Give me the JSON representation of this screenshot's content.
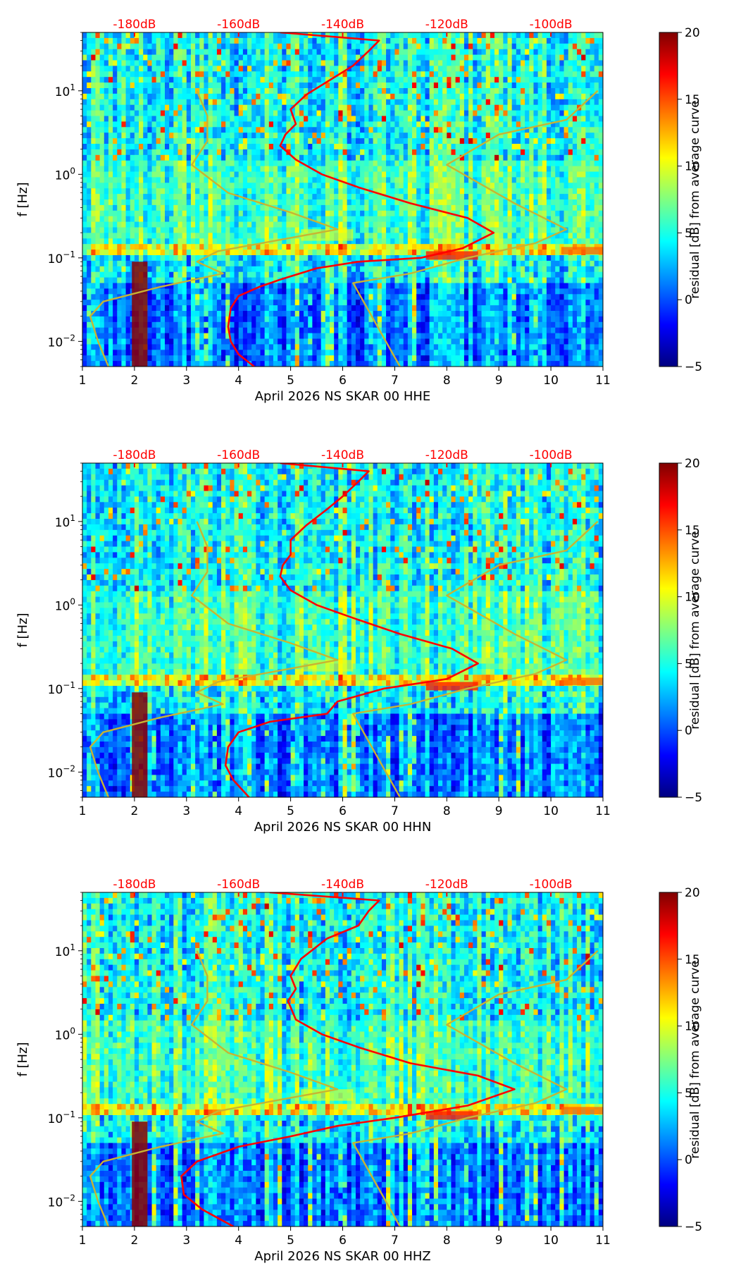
{
  "chart_data": [
    {
      "type": "heatmap",
      "title": "",
      "xlabel": "April 2026 NS SKAR 00 HHE",
      "ylabel": "f [Hz]",
      "xlim": [
        1,
        11
      ],
      "ylim": [
        0.005,
        50
      ],
      "yscale": "log",
      "x_ticks": [
        1,
        2,
        3,
        4,
        5,
        6,
        7,
        8,
        9,
        10,
        11
      ],
      "top_axis_labels": [
        "-180dB",
        "-160dB",
        "-140dB",
        "-120dB",
        "-100dB"
      ],
      "colorbar": {
        "label": "residual [dB] from average curve",
        "range": [
          -5,
          20
        ],
        "ticks": [
          -5,
          0,
          5,
          10,
          15,
          20
        ],
        "colormap": "jet"
      },
      "series": [
        {
          "color": "#ff0000",
          "points": [
            [
              4.3,
              0.005
            ],
            [
              4.0,
              0.007
            ],
            [
              3.85,
              0.01
            ],
            [
              3.8,
              0.015
            ],
            [
              3.85,
              0.025
            ],
            [
              4.0,
              0.035
            ],
            [
              4.4,
              0.045
            ],
            [
              4.8,
              0.055
            ],
            [
              5.5,
              0.075
            ],
            [
              6.3,
              0.09
            ],
            [
              7.5,
              0.1
            ],
            [
              8.3,
              0.13
            ],
            [
              8.9,
              0.2
            ],
            [
              8.4,
              0.3
            ],
            [
              7.3,
              0.45
            ],
            [
              6.3,
              0.7
            ],
            [
              5.6,
              1.0
            ],
            [
              5.1,
              1.5
            ],
            [
              4.8,
              2.2
            ],
            [
              4.9,
              3
            ],
            [
              5.1,
              4
            ],
            [
              5.0,
              6
            ],
            [
              5.3,
              9
            ],
            [
              5.8,
              14
            ],
            [
              6.2,
              20
            ],
            [
              6.5,
              30
            ],
            [
              6.7,
              40
            ],
            [
              4.8,
              50
            ]
          ]
        },
        {
          "color": "#c8b432",
          "points": [
            [
              1.5,
              0.005
            ],
            [
              1.3,
              0.01
            ],
            [
              1.15,
              0.02
            ],
            [
              1.4,
              0.03
            ],
            [
              2.5,
              0.045
            ],
            [
              3.7,
              0.065
            ],
            [
              3.2,
              0.09
            ],
            [
              3.6,
              0.12
            ],
            [
              5.9,
              0.22
            ],
            [
              5.0,
              0.35
            ],
            [
              3.8,
              0.6
            ],
            [
              3.1,
              1.3
            ],
            [
              3.4,
              2.5
            ],
            [
              3.4,
              5
            ],
            [
              3.2,
              10
            ]
          ]
        },
        {
          "color": "#c8b432",
          "points": [
            [
              7.1,
              0.005
            ],
            [
              6.2,
              0.05
            ],
            [
              7.3,
              0.065
            ],
            [
              8.4,
              0.1
            ],
            [
              9.7,
              0.15
            ],
            [
              10.3,
              0.22
            ],
            [
              9.3,
              0.45
            ],
            [
              8.0,
              1.3
            ],
            [
              9.0,
              3
            ],
            [
              10.3,
              4.5
            ],
            [
              10.9,
              10
            ]
          ]
        }
      ]
    },
    {
      "type": "heatmap",
      "title": "",
      "xlabel": "April 2026 NS SKAR 00 HHN",
      "ylabel": "f [Hz]",
      "xlim": [
        1,
        11
      ],
      "ylim": [
        0.005,
        50
      ],
      "yscale": "log",
      "x_ticks": [
        1,
        2,
        3,
        4,
        5,
        6,
        7,
        8,
        9,
        10,
        11
      ],
      "top_axis_labels": [
        "-180dB",
        "-160dB",
        "-140dB",
        "-120dB",
        "-100dB"
      ],
      "colorbar": {
        "label": "residual [dB] from average curve",
        "range": [
          -5,
          20
        ],
        "ticks": [
          -5,
          0,
          5,
          10,
          15,
          20
        ],
        "colormap": "jet"
      },
      "series": [
        {
          "color": "#ff0000",
          "points": [
            [
              4.2,
              0.005
            ],
            [
              3.9,
              0.008
            ],
            [
              3.75,
              0.012
            ],
            [
              3.8,
              0.02
            ],
            [
              4.0,
              0.03
            ],
            [
              4.6,
              0.04
            ],
            [
              5.7,
              0.05
            ],
            [
              5.9,
              0.07
            ],
            [
              6.8,
              0.1
            ],
            [
              8.0,
              0.13
            ],
            [
              8.6,
              0.2
            ],
            [
              8.1,
              0.3
            ],
            [
              7.1,
              0.45
            ],
            [
              6.2,
              0.7
            ],
            [
              5.5,
              1.0
            ],
            [
              5.0,
              1.5
            ],
            [
              4.8,
              2.2
            ],
            [
              4.85,
              3
            ],
            [
              5.0,
              4
            ],
            [
              5.0,
              6
            ],
            [
              5.3,
              9
            ],
            [
              5.7,
              14
            ],
            [
              6.0,
              20
            ],
            [
              6.3,
              30
            ],
            [
              6.5,
              40
            ],
            [
              4.8,
              50
            ]
          ]
        },
        {
          "color": "#c8b432",
          "points": [
            [
              1.5,
              0.005
            ],
            [
              1.3,
              0.01
            ],
            [
              1.15,
              0.02
            ],
            [
              1.4,
              0.03
            ],
            [
              2.5,
              0.045
            ],
            [
              3.7,
              0.065
            ],
            [
              3.2,
              0.09
            ],
            [
              3.6,
              0.12
            ],
            [
              5.9,
              0.22
            ],
            [
              5.0,
              0.35
            ],
            [
              3.8,
              0.6
            ],
            [
              3.1,
              1.3
            ],
            [
              3.4,
              2.5
            ],
            [
              3.4,
              5
            ],
            [
              3.2,
              10
            ]
          ]
        },
        {
          "color": "#c8b432",
          "points": [
            [
              7.1,
              0.005
            ],
            [
              6.2,
              0.05
            ],
            [
              7.3,
              0.065
            ],
            [
              8.4,
              0.1
            ],
            [
              9.7,
              0.15
            ],
            [
              10.3,
              0.22
            ],
            [
              9.3,
              0.45
            ],
            [
              8.0,
              1.3
            ],
            [
              9.0,
              3
            ],
            [
              10.3,
              4.5
            ],
            [
              10.9,
              10
            ]
          ]
        }
      ]
    },
    {
      "type": "heatmap",
      "title": "",
      "xlabel": "April 2026 NS SKAR 00 HHZ",
      "ylabel": "f [Hz]",
      "xlim": [
        1,
        11
      ],
      "ylim": [
        0.005,
        50
      ],
      "yscale": "log",
      "x_ticks": [
        1,
        2,
        3,
        4,
        5,
        6,
        7,
        8,
        9,
        10,
        11
      ],
      "top_axis_labels": [
        "-180dB",
        "-160dB",
        "-140dB",
        "-120dB",
        "-100dB"
      ],
      "colorbar": {
        "label": "residual [dB] from average curve",
        "range": [
          -5,
          20
        ],
        "ticks": [
          -5,
          0,
          5,
          10,
          15,
          20
        ],
        "colormap": "jet"
      },
      "series": [
        {
          "color": "#ff0000",
          "points": [
            [
              3.9,
              0.005
            ],
            [
              3.3,
              0.008
            ],
            [
              2.95,
              0.012
            ],
            [
              2.9,
              0.02
            ],
            [
              3.2,
              0.03
            ],
            [
              4.0,
              0.045
            ],
            [
              5.0,
              0.06
            ],
            [
              5.9,
              0.08
            ],
            [
              7.0,
              0.1
            ],
            [
              8.4,
              0.14
            ],
            [
              9.3,
              0.22
            ],
            [
              8.6,
              0.32
            ],
            [
              7.3,
              0.45
            ],
            [
              6.3,
              0.7
            ],
            [
              5.6,
              1.0
            ],
            [
              5.1,
              1.5
            ],
            [
              4.95,
              2.5
            ],
            [
              5.1,
              3.5
            ],
            [
              5.0,
              5
            ],
            [
              5.2,
              8
            ],
            [
              5.7,
              14
            ],
            [
              6.3,
              20
            ],
            [
              6.5,
              30
            ],
            [
              6.7,
              40
            ],
            [
              4.6,
              50
            ]
          ]
        },
        {
          "color": "#c8b432",
          "points": [
            [
              1.5,
              0.005
            ],
            [
              1.3,
              0.01
            ],
            [
              1.15,
              0.02
            ],
            [
              1.4,
              0.03
            ],
            [
              2.5,
              0.045
            ],
            [
              3.7,
              0.065
            ],
            [
              3.2,
              0.09
            ],
            [
              3.6,
              0.12
            ],
            [
              5.9,
              0.22
            ],
            [
              5.0,
              0.35
            ],
            [
              3.8,
              0.6
            ],
            [
              3.1,
              1.3
            ],
            [
              3.4,
              2.5
            ],
            [
              3.4,
              5
            ],
            [
              3.2,
              10
            ]
          ]
        },
        {
          "color": "#c8b432",
          "points": [
            [
              7.1,
              0.005
            ],
            [
              6.2,
              0.05
            ],
            [
              7.3,
              0.065
            ],
            [
              8.4,
              0.1
            ],
            [
              9.7,
              0.15
            ],
            [
              10.3,
              0.22
            ],
            [
              9.3,
              0.45
            ],
            [
              8.0,
              1.3
            ],
            [
              9.0,
              3
            ],
            [
              10.3,
              4.5
            ],
            [
              10.9,
              10
            ]
          ]
        }
      ]
    }
  ]
}
